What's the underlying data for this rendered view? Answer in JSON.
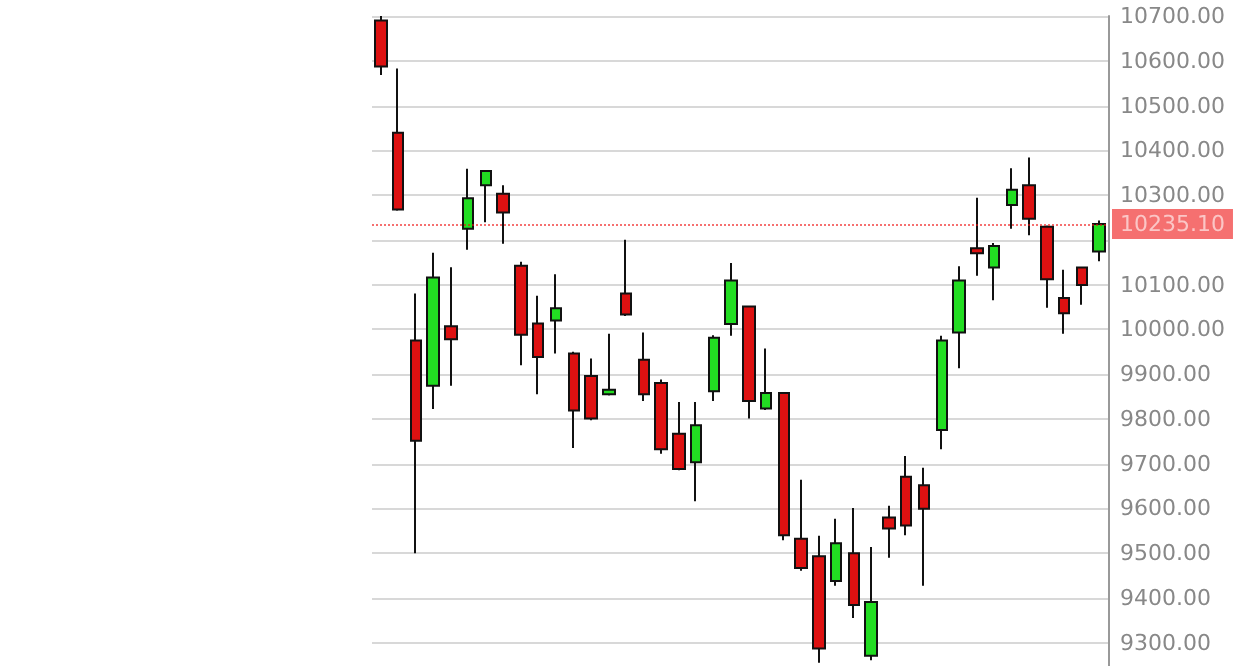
{
  "chart_data": {
    "type": "candlestick",
    "categories": [
      null,
      null,
      null,
      null,
      null,
      null,
      null,
      null,
      null,
      null,
      null,
      null,
      null,
      null,
      null,
      null,
      null,
      null,
      null,
      null,
      null,
      null,
      null,
      null,
      null,
      null,
      null,
      null,
      null,
      null,
      null,
      null,
      null,
      null,
      null,
      null,
      null,
      null,
      null,
      null,
      null,
      null
    ],
    "ohlc": [
      [
        10690,
        10700,
        10568,
        10587
      ],
      [
        10439,
        10583,
        10265,
        10268
      ],
      [
        9975,
        10080,
        9500,
        9751
      ],
      [
        9874,
        10171,
        9822,
        10116
      ],
      [
        10007,
        10139,
        9874,
        9978
      ],
      [
        10225,
        10359,
        10178,
        10293
      ],
      [
        10322,
        10356,
        10239,
        10354
      ],
      [
        10303,
        10322,
        10191,
        10261
      ],
      [
        10142,
        10151,
        9920,
        9988
      ],
      [
        10013,
        10075,
        9855,
        9938
      ],
      [
        10020,
        10123,
        9946,
        10047
      ],
      [
        9946,
        9950,
        9735,
        9819
      ],
      [
        9896,
        9935,
        9797,
        9801
      ],
      [
        9855,
        9990,
        9852,
        9865
      ],
      [
        10080,
        10200,
        10030,
        10033
      ],
      [
        9932,
        9993,
        9840,
        9855
      ],
      [
        9880,
        9888,
        9722,
        9732
      ],
      [
        9767,
        9838,
        9685,
        9688
      ],
      [
        9703,
        9838,
        9616,
        9786
      ],
      [
        9862,
        9987,
        9840,
        9981
      ],
      [
        10012,
        10148,
        9986,
        10109
      ],
      [
        10051,
        10051,
        9801,
        9840
      ],
      [
        9823,
        9957,
        9820,
        9858
      ],
      [
        9858,
        9858,
        9529,
        9540
      ],
      [
        9532,
        9664,
        9461,
        9467
      ],
      [
        9493,
        9539,
        9255,
        9287
      ],
      [
        9438,
        9577,
        9427,
        9522
      ],
      [
        9500,
        9601,
        9355,
        9384
      ],
      [
        9271,
        9514,
        9261,
        9391
      ],
      [
        9580,
        9606,
        9490,
        9555
      ],
      [
        9671,
        9717,
        9540,
        9562
      ],
      [
        9652,
        9691,
        9427,
        9599
      ],
      [
        9775,
        9986,
        9732,
        9975
      ],
      [
        9993,
        10141,
        9913,
        10109
      ],
      [
        10181,
        10294,
        10120,
        10170
      ],
      [
        10138,
        10193,
        10065,
        10186
      ],
      [
        10278,
        10360,
        10225,
        10312
      ],
      [
        10322,
        10384,
        10210,
        10247
      ],
      [
        10229,
        10232,
        10048,
        10112
      ],
      [
        10070,
        10133,
        9990,
        10036
      ],
      [
        10138,
        10140,
        10055,
        10099
      ],
      [
        10174,
        10243,
        10152,
        10235.1
      ]
    ],
    "colors": [
      "#dd1111",
      "#dd1111",
      "#dd1111",
      "#22dd22",
      "#dd1111",
      "#22dd22",
      "#22dd22",
      "#dd1111",
      "#dd1111",
      "#dd1111",
      "#22dd22",
      "#dd1111",
      "#dd1111",
      "#22dd22",
      "#dd1111",
      "#dd1111",
      "#dd1111",
      "#dd1111",
      "#22dd22",
      "#22dd22",
      "#22dd22",
      "#dd1111",
      "#22dd22",
      "#dd1111",
      "#dd1111",
      "#dd1111",
      "#22dd22",
      "#dd1111",
      "#22dd22",
      "#dd1111",
      "#dd1111",
      "#dd1111",
      "#22dd22",
      "#22dd22",
      "#dd1111",
      "#22dd22",
      "#22dd22",
      "#dd1111",
      "#dd1111",
      "#dd1111",
      "#dd1111",
      "#22dd22"
    ],
    "ylim": [
      9248,
      10700
    ],
    "yticks": [
      {
        "value": 9300,
        "label": "9300.00"
      },
      {
        "value": 9400,
        "label": "9400.00"
      },
      {
        "value": 9500,
        "label": "9500.00"
      },
      {
        "value": 9600,
        "label": "9600.00"
      },
      {
        "value": 9700,
        "label": "9700.00"
      },
      {
        "value": 9800,
        "label": "9800.00"
      },
      {
        "value": 9900,
        "label": "9900.00"
      },
      {
        "value": 10000,
        "label": "10000.00"
      },
      {
        "value": 10100,
        "label": "10100.00"
      },
      {
        "value": 10200,
        "label": null
      },
      {
        "value": 10300,
        "label": "10300.00"
      },
      {
        "value": 10400,
        "label": "10400.00"
      },
      {
        "value": 10500,
        "label": "10500.00"
      },
      {
        "value": 10600,
        "label": "10600.00"
      },
      {
        "value": 10700,
        "label": "10700.00"
      }
    ],
    "ref_lines": [
      {
        "axis": "y",
        "value": 10235.1,
        "label": "10235.10",
        "color": "#ee1111"
      }
    ],
    "grid": "y",
    "tick_labels": "y"
  }
}
